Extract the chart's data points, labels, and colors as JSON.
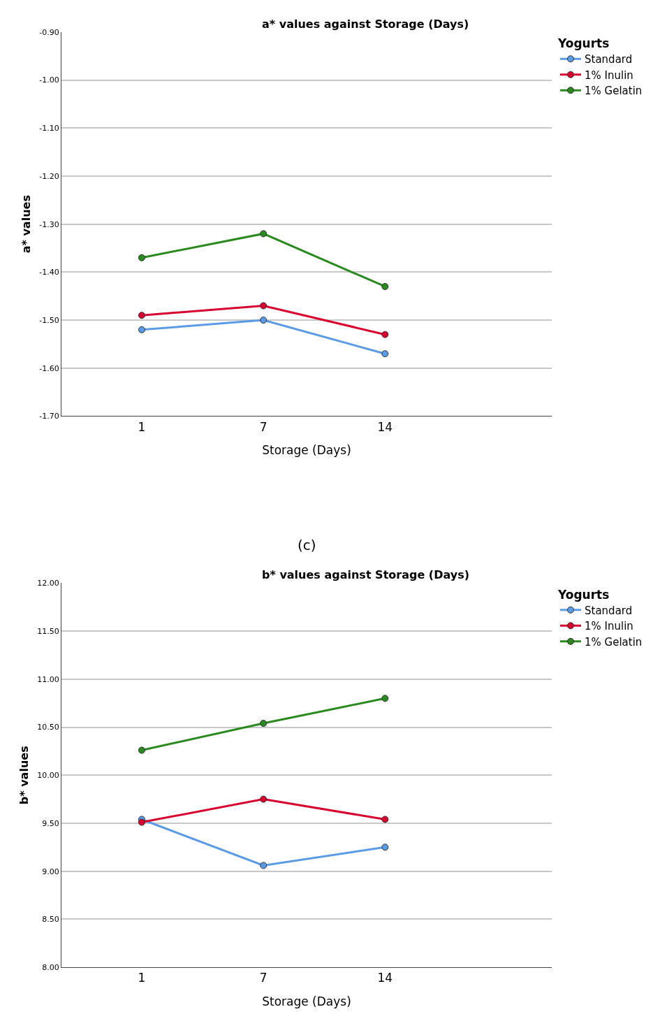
{
  "chart_data": [
    {
      "type": "line",
      "title": "a* values against Storage (Days)",
      "xlabel": "Storage (Days)",
      "ylabel": "a* values",
      "legend_title": "Yogurts",
      "categories": [
        "1",
        "7",
        "14"
      ],
      "series": [
        {
          "name": "Standard",
          "color": "#5b9be6",
          "values": [
            -1.52,
            -1.5,
            -1.57
          ]
        },
        {
          "name": "1% Inulin",
          "color": "#d8002f",
          "values": [
            -1.49,
            -1.47,
            -1.53
          ]
        },
        {
          "name": "1% Gelatin",
          "color": "#2a8a1f",
          "values": [
            -1.37,
            -1.32,
            -1.43
          ]
        }
      ],
      "ylim": [
        -1.7,
        -0.9
      ],
      "yticks": [
        {
          "value": -1.7,
          "label": "-1.70"
        },
        {
          "value": -1.6,
          "label": "-1.60"
        },
        {
          "value": -1.5,
          "label": "-1.50"
        },
        {
          "value": -1.4,
          "label": "-1.40"
        },
        {
          "value": -1.3,
          "label": "-1.30"
        },
        {
          "value": -1.2,
          "label": "-1.20"
        },
        {
          "value": -1.1,
          "label": "-1.10"
        },
        {
          "value": -1.0,
          "label": "-1.00"
        },
        {
          "value": -0.9,
          "label": "-0.90"
        }
      ],
      "grid": "y",
      "legend": "top right",
      "marker": "circle",
      "annotations": [
        "(c)"
      ]
    },
    {
      "type": "line",
      "title": "b* values against Storage (Days)",
      "xlabel": "Storage (Days)",
      "ylabel": "b* values",
      "legend_title": "Yogurts",
      "categories": [
        "1",
        "7",
        "14"
      ],
      "series": [
        {
          "name": "Standard",
          "color": "#5b9be6",
          "values": [
            9.54,
            9.06,
            9.25
          ]
        },
        {
          "name": "1% Inulin",
          "color": "#d8002f",
          "values": [
            9.51,
            9.75,
            9.54
          ]
        },
        {
          "name": "1% Gelatin",
          "color": "#2a8a1f",
          "values": [
            10.26,
            10.54,
            10.8
          ]
        }
      ],
      "ylim": [
        8.0,
        12.0
      ],
      "yticks": [
        {
          "value": 8.0,
          "label": "8.00"
        },
        {
          "value": 8.5,
          "label": "8.50"
        },
        {
          "value": 9.0,
          "label": "9.00"
        },
        {
          "value": 9.5,
          "label": "9.50"
        },
        {
          "value": 10.0,
          "label": "10.00"
        },
        {
          "value": 10.5,
          "label": "10.50"
        },
        {
          "value": 11.0,
          "label": "11.00"
        },
        {
          "value": 11.5,
          "label": "11.50"
        },
        {
          "value": 12.0,
          "label": "12.00"
        }
      ],
      "grid": "y",
      "legend": "top right",
      "marker": "circle"
    }
  ]
}
